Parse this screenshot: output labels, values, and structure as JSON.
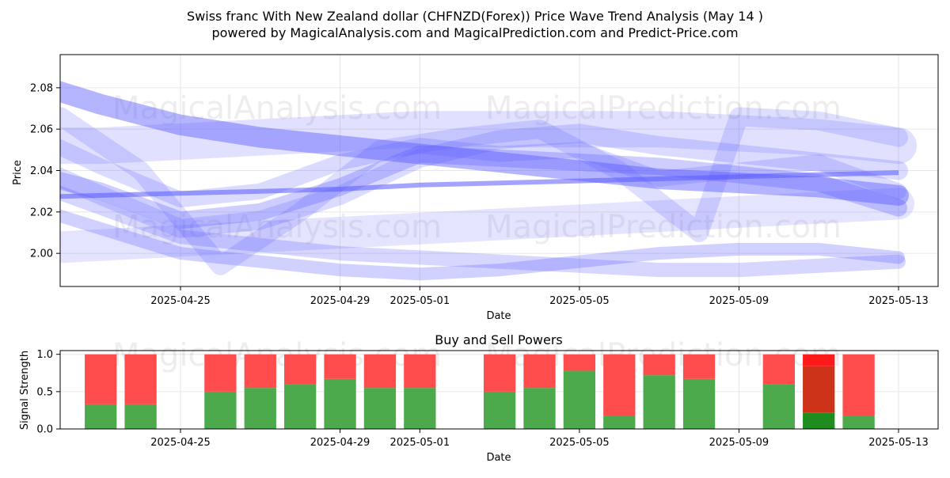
{
  "title_line1": "Swiss franc With New Zealand dollar (CHFNZD(Forex)) Price Wave Trend Analysis (May 14 )",
  "title_line2": "powered by MagicalAnalysis.com and MagicalPrediction.com and Predict-Price.com",
  "watermarks": [
    "MagicalAnalysis.com",
    "MagicalPrediction.com"
  ],
  "chart_data": [
    {
      "type": "line",
      "title": "",
      "xlabel": "Date",
      "ylabel": "Price",
      "x_ticks": [
        "2025-04-25",
        "2025-04-29",
        "2025-05-01",
        "2025-05-05",
        "2025-05-09",
        "2025-05-13"
      ],
      "y_ticks": [
        "2.00",
        "2.02",
        "2.04",
        "2.06",
        "2.08"
      ],
      "xlim": [
        "2025-04-20",
        "2025-05-14"
      ],
      "ylim": [
        1.984,
        2.096
      ],
      "grid": true,
      "band_color": "#5a5aff",
      "series": [
        {
          "x": [
            "2025-04-21",
            "2025-04-22",
            "2025-04-23",
            "2025-04-25",
            "2025-04-27",
            "2025-04-29",
            "2025-05-01",
            "2025-05-03",
            "2025-05-05",
            "2025-05-07",
            "2025-05-09",
            "2025-05-11",
            "2025-05-13"
          ],
          "values": [
            2.082,
            2.078,
            2.072,
            2.062,
            2.056,
            2.052,
            2.048,
            2.044,
            2.04,
            2.036,
            2.034,
            2.032,
            2.028
          ]
        },
        {
          "x": [
            "2025-04-21",
            "2025-04-23",
            "2025-04-25",
            "2025-04-27",
            "2025-04-29",
            "2025-05-01",
            "2025-05-03",
            "2025-05-05",
            "2025-05-07",
            "2025-05-09",
            "2025-05-11",
            "2025-05-13"
          ],
          "values": [
            2.027,
            2.028,
            2.029,
            2.03,
            2.031,
            2.033,
            2.034,
            2.035,
            2.036,
            2.037,
            2.038,
            2.039
          ]
        },
        {
          "x": [
            "2025-04-21",
            "2025-04-23",
            "2025-04-25",
            "2025-04-27",
            "2025-04-29",
            "2025-05-01",
            "2025-05-03",
            "2025-05-05",
            "2025-05-07",
            "2025-05-09",
            "2025-05-11",
            "2025-05-13"
          ],
          "values": [
            2.04,
            2.03,
            2.016,
            2.02,
            2.032,
            2.048,
            2.046,
            2.044,
            2.042,
            2.038,
            2.034,
            2.022
          ]
        },
        {
          "x": [
            "2025-04-21",
            "2025-04-23",
            "2025-04-25",
            "2025-04-27",
            "2025-04-29",
            "2025-05-01",
            "2025-05-03",
            "2025-05-05",
            "2025-05-07",
            "2025-05-09",
            "2025-05-11",
            "2025-05-13"
          ],
          "values": [
            2.06,
            2.042,
            2.026,
            2.03,
            2.044,
            2.052,
            2.048,
            2.05,
            2.036,
            2.04,
            2.044,
            2.03
          ]
        },
        {
          "x": [
            "2025-04-21",
            "2025-04-23",
            "2025-04-25",
            "2025-04-27",
            "2025-04-29",
            "2025-05-01",
            "2025-05-03",
            "2025-05-05",
            "2025-05-07",
            "2025-05-09",
            "2025-05-11",
            "2025-05-13"
          ],
          "values": [
            2.036,
            2.022,
            2.008,
            2.004,
            2.0,
            1.998,
            1.996,
            1.994,
            1.992,
            1.992,
            1.994,
            1.996
          ]
        },
        {
          "x": [
            "2025-04-21",
            "2025-04-23",
            "2025-04-25",
            "2025-04-27",
            "2025-04-29",
            "2025-05-01",
            "2025-05-03",
            "2025-05-05",
            "2025-05-07",
            "2025-05-09",
            "2025-05-11",
            "2025-05-13"
          ],
          "values": [
            2.045,
            2.028,
            2.012,
            2.016,
            2.028,
            2.046,
            2.055,
            2.058,
            2.052,
            2.048,
            2.044,
            2.04
          ]
        },
        {
          "x": [
            "2025-04-21",
            "2025-04-23",
            "2025-04-25",
            "2025-04-27",
            "2025-04-29",
            "2025-05-01",
            "2025-05-03",
            "2025-05-05",
            "2025-05-07",
            "2025-05-09",
            "2025-05-11",
            "2025-05-13"
          ],
          "values": [
            2.024,
            2.012,
            2.0,
            1.996,
            1.992,
            1.99,
            1.992,
            1.996,
            2.0,
            2.002,
            2.002,
            1.998
          ]
        },
        {
          "x": [
            "2025-04-21",
            "2025-04-23",
            "2025-04-25",
            "2025-04-27",
            "2025-04-29",
            "2025-05-01",
            "2025-05-03",
            "2025-05-05",
            "2025-05-07",
            "2025-05-09",
            "2025-05-11",
            "2025-05-13"
          ],
          "values": [
            2.052,
            2.052,
            2.054,
            2.056,
            2.058,
            2.06,
            2.06,
            2.06,
            2.06,
            2.058,
            2.056,
            2.052
          ]
        },
        {
          "x": [
            "2025-04-21",
            "2025-04-23",
            "2025-04-25",
            "2025-04-27",
            "2025-04-29",
            "2025-05-01",
            "2025-05-03",
            "2025-05-05",
            "2025-05-07",
            "2025-05-09",
            "2025-05-11",
            "2025-05-13"
          ],
          "values": [
            2.002,
            2.004,
            2.006,
            2.008,
            2.01,
            2.012,
            2.014,
            2.016,
            2.018,
            2.02,
            2.022,
            2.024
          ]
        },
        {
          "x": [
            "2025-04-22",
            "2025-04-24",
            "2025-04-26",
            "2025-04-28",
            "2025-04-30",
            "2025-05-02",
            "2025-05-04",
            "2025-05-06",
            "2025-05-08",
            "2025-05-09",
            "2025-05-11",
            "2025-05-13"
          ],
          "values": [
            2.066,
            2.04,
            1.994,
            2.02,
            2.05,
            2.056,
            2.06,
            2.04,
            2.01,
            2.066,
            2.064,
            2.056
          ]
        }
      ]
    },
    {
      "type": "bar",
      "title": "Buy and Sell Powers",
      "xlabel": "Date",
      "ylabel": "Signal Strength",
      "x_ticks": [
        "2025-04-25",
        "2025-04-29",
        "2025-05-01",
        "2025-05-05",
        "2025-05-09",
        "2025-05-13"
      ],
      "y_ticks": [
        "0.0",
        "0.5",
        "1.0"
      ],
      "xlim": [
        "2025-04-20",
        "2025-05-14"
      ],
      "ylim": [
        0,
        1.05
      ],
      "grid": true,
      "colors": {
        "buy": "#4caa4c",
        "sell": "#ff4c4c",
        "buy_strong": "#1e8c1e",
        "sell_strong": "#cc3319",
        "sell_top": "#ff1a1a"
      },
      "categories": [
        "2025-04-23",
        "2025-04-24",
        "2025-04-26",
        "2025-04-27",
        "2025-04-28",
        "2025-04-29",
        "2025-04-30",
        "2025-05-01",
        "2025-05-03",
        "2025-05-04",
        "2025-05-05",
        "2025-05-06",
        "2025-05-07",
        "2025-05-08",
        "2025-05-10",
        "2025-05-11",
        "2025-05-12"
      ],
      "series": [
        {
          "values": [
            0.33,
            0.33,
            0.5,
            0.55,
            0.6,
            0.67,
            0.55,
            0.55,
            0.5,
            0.55,
            0.78,
            0.17,
            0.72,
            0.67,
            0.6,
            0.22,
            0.17
          ]
        },
        {
          "values": [
            0.67,
            0.67,
            0.5,
            0.45,
            0.4,
            0.33,
            0.45,
            0.45,
            0.5,
            0.45,
            0.22,
            0.83,
            0.28,
            0.33,
            0.4,
            0.78,
            0.83
          ]
        }
      ],
      "highlight_index": 15
    }
  ]
}
